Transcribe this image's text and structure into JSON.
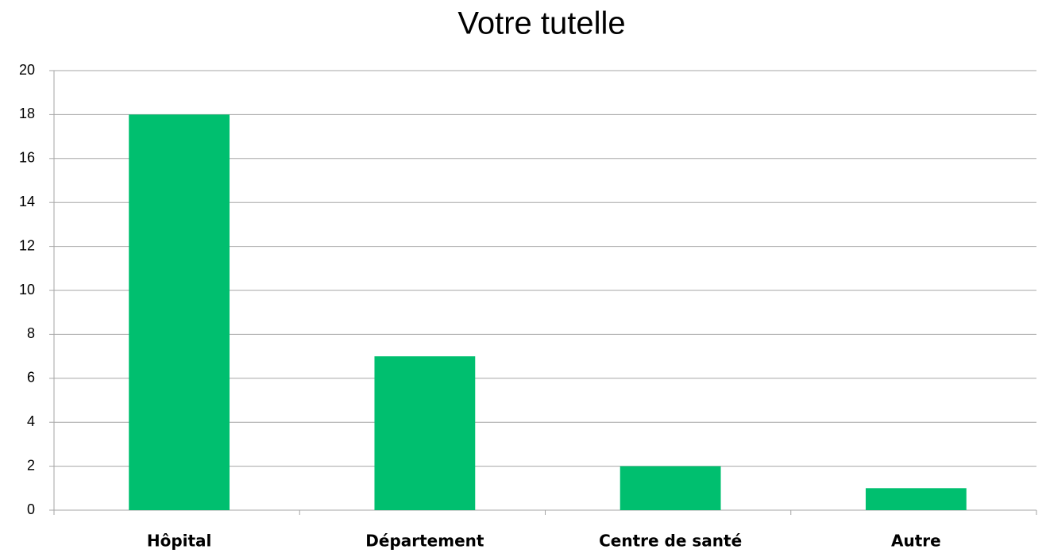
{
  "chart_data": {
    "type": "bar",
    "title": "Votre tutelle",
    "categories": [
      "Hôpital",
      "Département",
      "Centre de santé",
      "Autre"
    ],
    "values": [
      18,
      7,
      2,
      1
    ],
    "color": "#00bf6f",
    "ylim": [
      0,
      20
    ],
    "yticks": [
      0,
      2,
      4,
      6,
      8,
      10,
      12,
      14,
      16,
      18,
      20
    ],
    "grid": true
  }
}
